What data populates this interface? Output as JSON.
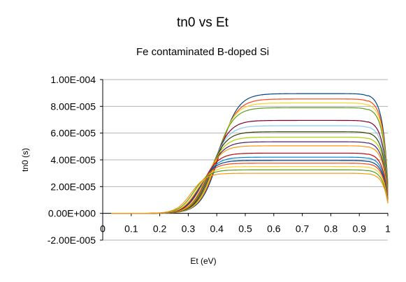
{
  "chart_data": {
    "type": "line",
    "title": "tn0 vs Et",
    "subtitle": "Fe contaminated B-doped Si",
    "xlabel": "Et (eV)",
    "ylabel": "tn0 (s)",
    "xlim": [
      0,
      1
    ],
    "ylim": [
      -2e-05,
      0.0001
    ],
    "x_ticks": [
      "0",
      "0.1",
      "0.2",
      "0.3",
      "0.4",
      "0.5",
      "0.6",
      "0.7",
      "0.8",
      "0.9",
      "1"
    ],
    "y_ticks": [
      "-2.00E-005",
      "0.00E+000",
      "2.00E-005",
      "4.00E-005",
      "6.00E-005",
      "8.00E-005",
      "1.00E-004"
    ],
    "grid": "horizontal",
    "legend": "none",
    "series": [
      {
        "color": "#004586",
        "plateau": 8.95e-05,
        "midpoint": 0.41,
        "width": 0.032,
        "hump": 2.2e-05
      },
      {
        "color": "#ff420e",
        "plateau": 8.55e-05,
        "midpoint": 0.405,
        "width": 0.032,
        "hump": 2.4e-05
      },
      {
        "color": "#ffd320",
        "plateau": 8.25e-05,
        "midpoint": 0.4,
        "width": 0.031,
        "hump": 2.5e-05
      },
      {
        "color": "#579d1c",
        "plateau": 7.9e-05,
        "midpoint": 0.395,
        "width": 0.031,
        "hump": 2.6e-05
      },
      {
        "color": "#7e0021",
        "plateau": 6.95e-05,
        "midpoint": 0.385,
        "width": 0.03,
        "hump": 2.7e-05
      },
      {
        "color": "#83caff",
        "plateau": 6.55e-05,
        "midpoint": 0.38,
        "width": 0.03,
        "hump": 2.8e-05
      },
      {
        "color": "#314004",
        "plateau": 6.1e-05,
        "midpoint": 0.375,
        "width": 0.029,
        "hump": 2.9e-05
      },
      {
        "color": "#aecf00",
        "plateau": 5.7e-05,
        "midpoint": 0.37,
        "width": 0.029,
        "hump": 3e-05
      },
      {
        "color": "#4b1f6f",
        "plateau": 5.35e-05,
        "midpoint": 0.365,
        "width": 0.029,
        "hump": 3e-05
      },
      {
        "color": "#ff950e",
        "plateau": 5.05e-05,
        "midpoint": 0.36,
        "width": 0.028,
        "hump": 3.1e-05
      },
      {
        "color": "#c5000b",
        "plateau": 4.5e-05,
        "midpoint": 0.35,
        "width": 0.028,
        "hump": 3.2e-05
      },
      {
        "color": "#0084d1",
        "plateau": 4.2e-05,
        "midpoint": 0.345,
        "width": 0.028,
        "hump": 3.3e-05
      },
      {
        "color": "#004586",
        "plateau": 3.95e-05,
        "midpoint": 0.34,
        "width": 0.027,
        "hump": 3.3e-05
      },
      {
        "color": "#ff420e",
        "plateau": 3.75e-05,
        "midpoint": 0.335,
        "width": 0.027,
        "hump": 3.4e-05
      },
      {
        "color": "#ffd320",
        "plateau": 3.5e-05,
        "midpoint": 0.33,
        "width": 0.027,
        "hump": 3.5e-05
      },
      {
        "color": "#579d1c",
        "plateau": 3.25e-05,
        "midpoint": 0.32,
        "width": 0.026,
        "hump": 3.5e-05
      },
      {
        "color": "#ff950e",
        "plateau": 3e-05,
        "midpoint": 0.31,
        "width": 0.026,
        "hump": 3.6e-05
      }
    ]
  }
}
